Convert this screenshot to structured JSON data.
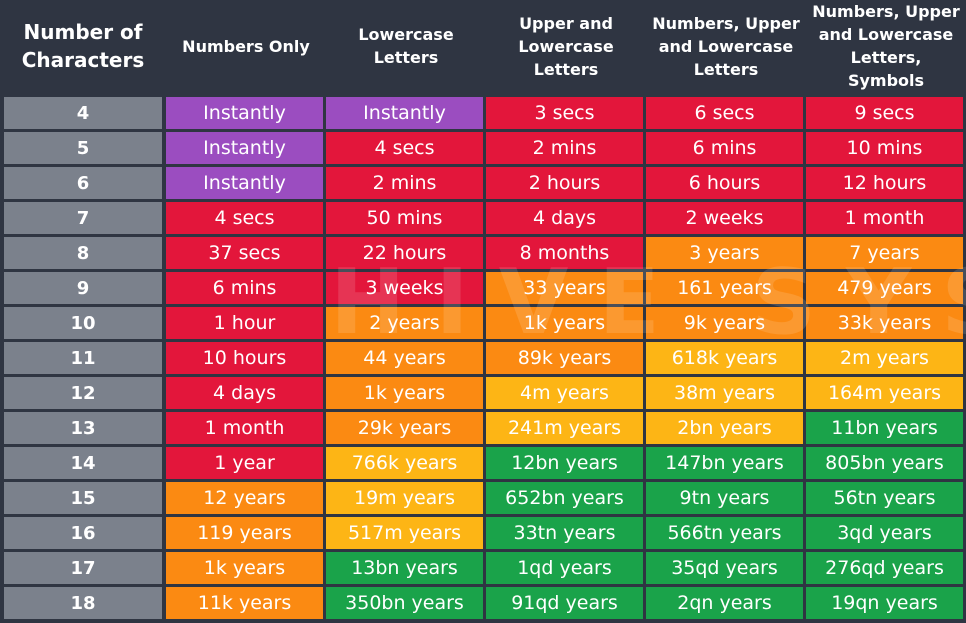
{
  "table": {
    "headers": [
      "Number of Characters",
      "Numbers Only",
      "Lowercase Letters",
      "Upper and Lowercase Letters",
      "Numbers, Upper and Lowercase Letters",
      "Numbers, Upper and Lowercase Letters, Symbols"
    ],
    "palette": {
      "P": "#9b4dc0",
      "R": "#e3163b",
      "O": "#fb8a12",
      "Y": "#fdb515",
      "G": "#1aa34a"
    },
    "rows": [
      {
        "label": "4",
        "cells": [
          "Instantly",
          "Instantly",
          "3 secs",
          "6 secs",
          "9 secs"
        ],
        "colors": [
          "P",
          "P",
          "R",
          "R",
          "R"
        ]
      },
      {
        "label": "5",
        "cells": [
          "Instantly",
          "4 secs",
          "2 mins",
          "6 mins",
          "10 mins"
        ],
        "colors": [
          "P",
          "R",
          "R",
          "R",
          "R"
        ]
      },
      {
        "label": "6",
        "cells": [
          "Instantly",
          "2 mins",
          "2 hours",
          "6 hours",
          "12 hours"
        ],
        "colors": [
          "P",
          "R",
          "R",
          "R",
          "R"
        ]
      },
      {
        "label": "7",
        "cells": [
          "4 secs",
          "50 mins",
          "4 days",
          "2 weeks",
          "1 month"
        ],
        "colors": [
          "R",
          "R",
          "R",
          "R",
          "R"
        ]
      },
      {
        "label": "8",
        "cells": [
          "37 secs",
          "22 hours",
          "8 months",
          "3 years",
          "7 years"
        ],
        "colors": [
          "R",
          "R",
          "R",
          "O",
          "O"
        ]
      },
      {
        "label": "9",
        "cells": [
          "6 mins",
          "3 weeks",
          "33 years",
          "161 years",
          "479 years"
        ],
        "colors": [
          "R",
          "R",
          "O",
          "O",
          "O"
        ]
      },
      {
        "label": "10",
        "cells": [
          "1 hour",
          "2 years",
          "1k years",
          "9k years",
          "33k years"
        ],
        "colors": [
          "R",
          "O",
          "O",
          "O",
          "O"
        ]
      },
      {
        "label": "11",
        "cells": [
          "10 hours",
          "44 years",
          "89k years",
          "618k years",
          "2m years"
        ],
        "colors": [
          "R",
          "O",
          "O",
          "Y",
          "Y"
        ]
      },
      {
        "label": "12",
        "cells": [
          "4 days",
          "1k years",
          "4m years",
          "38m years",
          "164m years"
        ],
        "colors": [
          "R",
          "O",
          "Y",
          "Y",
          "Y"
        ]
      },
      {
        "label": "13",
        "cells": [
          "1 month",
          "29k years",
          "241m years",
          "2bn years",
          "11bn years"
        ],
        "colors": [
          "R",
          "O",
          "Y",
          "Y",
          "G"
        ]
      },
      {
        "label": "14",
        "cells": [
          "1 year",
          "766k years",
          "12bn years",
          "147bn years",
          "805bn years"
        ],
        "colors": [
          "R",
          "Y",
          "G",
          "G",
          "G"
        ]
      },
      {
        "label": "15",
        "cells": [
          "12 years",
          "19m years",
          "652bn years",
          "9tn years",
          "56tn years"
        ],
        "colors": [
          "O",
          "Y",
          "G",
          "G",
          "G"
        ]
      },
      {
        "label": "16",
        "cells": [
          "119 years",
          "517m years",
          "33tn years",
          "566tn years",
          "3qd years"
        ],
        "colors": [
          "O",
          "Y",
          "G",
          "G",
          "G"
        ]
      },
      {
        "label": "17",
        "cells": [
          "1k years",
          "13bn years",
          "1qd years",
          "35qd years",
          "276qd years"
        ],
        "colors": [
          "O",
          "G",
          "G",
          "G",
          "G"
        ]
      },
      {
        "label": "18",
        "cells": [
          "11k years",
          "350bn years",
          "91qd years",
          "2qn years",
          "19qn years"
        ],
        "colors": [
          "O",
          "G",
          "G",
          "G",
          "G"
        ]
      }
    ]
  },
  "watermark": "HIVE SYSTEMS"
}
